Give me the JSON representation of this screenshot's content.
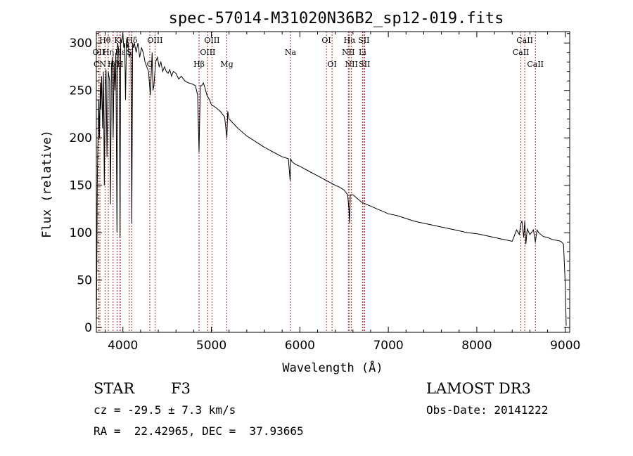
{
  "chart_data": {
    "type": "line",
    "title": "spec-57014-M31020N36B2_sp12-019.fits",
    "xlabel": "Wavelength (Å)",
    "ylabel": "Flux (relative)",
    "xlim": [
      3700,
      9050
    ],
    "ylim": [
      -5,
      312
    ],
    "x_ticks": [
      4000,
      5000,
      6000,
      7000,
      8000,
      9000
    ],
    "y_ticks": [
      0,
      50,
      100,
      150,
      200,
      250,
      300
    ],
    "spectrum": {
      "name": "flux",
      "x": [
        3700,
        3705,
        3712,
        3720,
        3728,
        3735,
        3745,
        3750,
        3760,
        3770,
        3780,
        3790,
        3800,
        3810,
        3820,
        3835,
        3850,
        3860,
        3870,
        3880,
        3890,
        3900,
        3910,
        3920,
        3933,
        3940,
        3950,
        3960,
        3968,
        3975,
        3985,
        4000,
        4010,
        4020,
        4030,
        4040,
        4050,
        4060,
        4070,
        4090,
        4101,
        4110,
        4120,
        4130,
        4150,
        4170,
        4190,
        4210,
        4230,
        4250,
        4270,
        4290,
        4310,
        4330,
        4340,
        4350,
        4370,
        4390,
        4410,
        4430,
        4450,
        4470,
        4490,
        4510,
        4530,
        4550,
        4570,
        4600,
        4630,
        4660,
        4700,
        4740,
        4780,
        4820,
        4845,
        4861,
        4875,
        4890,
        4910,
        4930,
        4950,
        4980,
        5000,
        5050,
        5100,
        5150,
        5175,
        5185,
        5200,
        5250,
        5300,
        5400,
        5500,
        5600,
        5700,
        5800,
        5870,
        5890,
        5895,
        5910,
        5950,
        6000,
        6100,
        6200,
        6300,
        6400,
        6450,
        6500,
        6540,
        6555,
        6563,
        6570,
        6580,
        6600,
        6650,
        6700,
        6800,
        6900,
        7000,
        7100,
        7200,
        7300,
        7400,
        7500,
        7600,
        7700,
        7800,
        7900,
        8000,
        8100,
        8200,
        8300,
        8350,
        8400,
        8450,
        8480,
        8498,
        8510,
        8530,
        8542,
        8555,
        8570,
        8600,
        8640,
        8662,
        8680,
        8700,
        8750,
        8800,
        8850,
        8900,
        8950,
        8980,
        9000,
        9010
      ],
      "y": [
        2,
        60,
        165,
        205,
        240,
        200,
        258,
        230,
        265,
        210,
        270,
        150,
        255,
        272,
        180,
        270,
        260,
        130,
        275,
        285,
        200,
        280,
        250,
        290,
        100,
        300,
        295,
        270,
        95,
        305,
        300,
        310,
        295,
        300,
        240,
        305,
        295,
        300,
        285,
        290,
        110,
        300,
        295,
        300,
        290,
        300,
        285,
        295,
        290,
        280,
        275,
        270,
        245,
        290,
        250,
        255,
        280,
        285,
        275,
        280,
        270,
        275,
        270,
        268,
        272,
        265,
        270,
        268,
        262,
        265,
        260,
        258,
        257,
        255,
        245,
        185,
        255,
        255,
        258,
        252,
        245,
        240,
        235,
        232,
        228,
        222,
        200,
        228,
        220,
        215,
        210,
        202,
        196,
        190,
        185,
        180,
        178,
        155,
        178,
        175,
        172,
        170,
        165,
        160,
        155,
        150,
        148,
        145,
        140,
        125,
        110,
        140,
        140,
        140,
        136,
        132,
        128,
        124,
        120,
        118,
        115,
        112,
        110,
        108,
        106,
        104,
        102,
        100,
        99,
        97,
        95,
        93,
        92,
        91,
        103,
        98,
        110,
        112,
        95,
        112,
        88,
        104,
        98,
        103,
        90,
        103,
        100,
        96,
        95,
        93,
        92,
        91,
        88,
        45,
        2
      ]
    },
    "emission_lines": [
      {
        "label": "Hθ",
        "wl": 3798,
        "row": 0
      },
      {
        "label": "OII",
        "wl": 3727,
        "row": 1
      },
      {
        "label": "Hη",
        "wl": 3835,
        "row": 1
      },
      {
        "label": "CN",
        "wl": 3740,
        "row": 2
      },
      {
        "label": "Hζ",
        "wl": 3889,
        "row": 2
      },
      {
        "label": "K",
        "wl": 3934,
        "row": 0
      },
      {
        "label": "Hε",
        "wl": 3970,
        "row": 1
      },
      {
        "label": "H",
        "wl": 3968,
        "row": 2
      },
      {
        "label": "Hδ",
        "wl": 4101,
        "row": 0
      },
      {
        "label": "S",
        "wl": 4072,
        "row": 1
      },
      {
        "label": "OIII",
        "wl": 4363,
        "row": 0
      },
      {
        "label": "G",
        "wl": 4304,
        "row": 2
      },
      {
        "label": "Hβ",
        "wl": 4861,
        "row": 2
      },
      {
        "label": "OIII",
        "wl": 5007,
        "row": 0
      },
      {
        "label": "OIII",
        "wl": 4959,
        "row": 1
      },
      {
        "label": "Mg",
        "wl": 5175,
        "row": 2
      },
      {
        "label": "Na",
        "wl": 5894,
        "row": 1
      },
      {
        "label": "OI",
        "wl": 6300,
        "row": 0
      },
      {
        "label": "OI",
        "wl": 6364,
        "row": 2
      },
      {
        "label": "Hα",
        "wl": 6563,
        "row": 0
      },
      {
        "label": "SII",
        "wl": 6724,
        "row": 0
      },
      {
        "label": "NII",
        "wl": 6548,
        "row": 1
      },
      {
        "label": "Li",
        "wl": 6708,
        "row": 1
      },
      {
        "label": "NII",
        "wl": 6583,
        "row": 2
      },
      {
        "label": "SII",
        "wl": 6731,
        "row": 2
      },
      {
        "label": "CaII",
        "wl": 8542,
        "row": 0
      },
      {
        "label": "CaII",
        "wl": 8498,
        "row": 1
      },
      {
        "label": "CaII",
        "wl": 8662,
        "row": 2
      }
    ],
    "line_color": "#b22222"
  },
  "info": {
    "class": "STAR",
    "subclass": "F3",
    "survey": "LAMOST DR3",
    "cz": "cz = -29.5 ± 7.3 km/s",
    "obs_date": "Obs-Date: 20141222",
    "coords": "RA =  22.42965, DEC =  37.93665"
  }
}
